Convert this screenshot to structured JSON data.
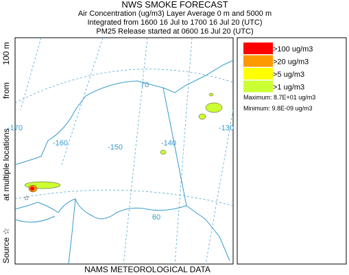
{
  "header": {
    "title": "NWS SMOKE FORECAST",
    "lines": [
      "Air Concentration (ug/m3) Layer Average    0 m and  5000 m",
      "Integrated from 1600 16 Jul to 1700 16 Jul 20 (UTC)",
      "PM25 Release started at 0600 16 Jul 20 (UTC)"
    ]
  },
  "side_label": [
    "Source ☆",
    "at multiple locations",
    "from",
    "100 m"
  ],
  "map_labels": {
    "longitudes": [
      "-170",
      "-160",
      "-150",
      "-140",
      "-130"
    ],
    "latitudes": [
      "70",
      "60"
    ]
  },
  "legend": {
    "items": [
      {
        "label": ">100 ug/m3",
        "color": "#ff0000"
      },
      {
        "label": ">20 ug/m3",
        "color": "#ff9900"
      },
      {
        "label": ">5 ug/m3",
        "color": "#ffff00"
      },
      {
        "label": ">1 ug/m3",
        "color": "#ccff33"
      }
    ],
    "maximum": "Maximum: 8.7E+01 ug/m3",
    "minimum": "Minimum: 9.8E-09 ug/m3"
  },
  "footer": "NAMS METEOROLOGICAL DATA"
}
